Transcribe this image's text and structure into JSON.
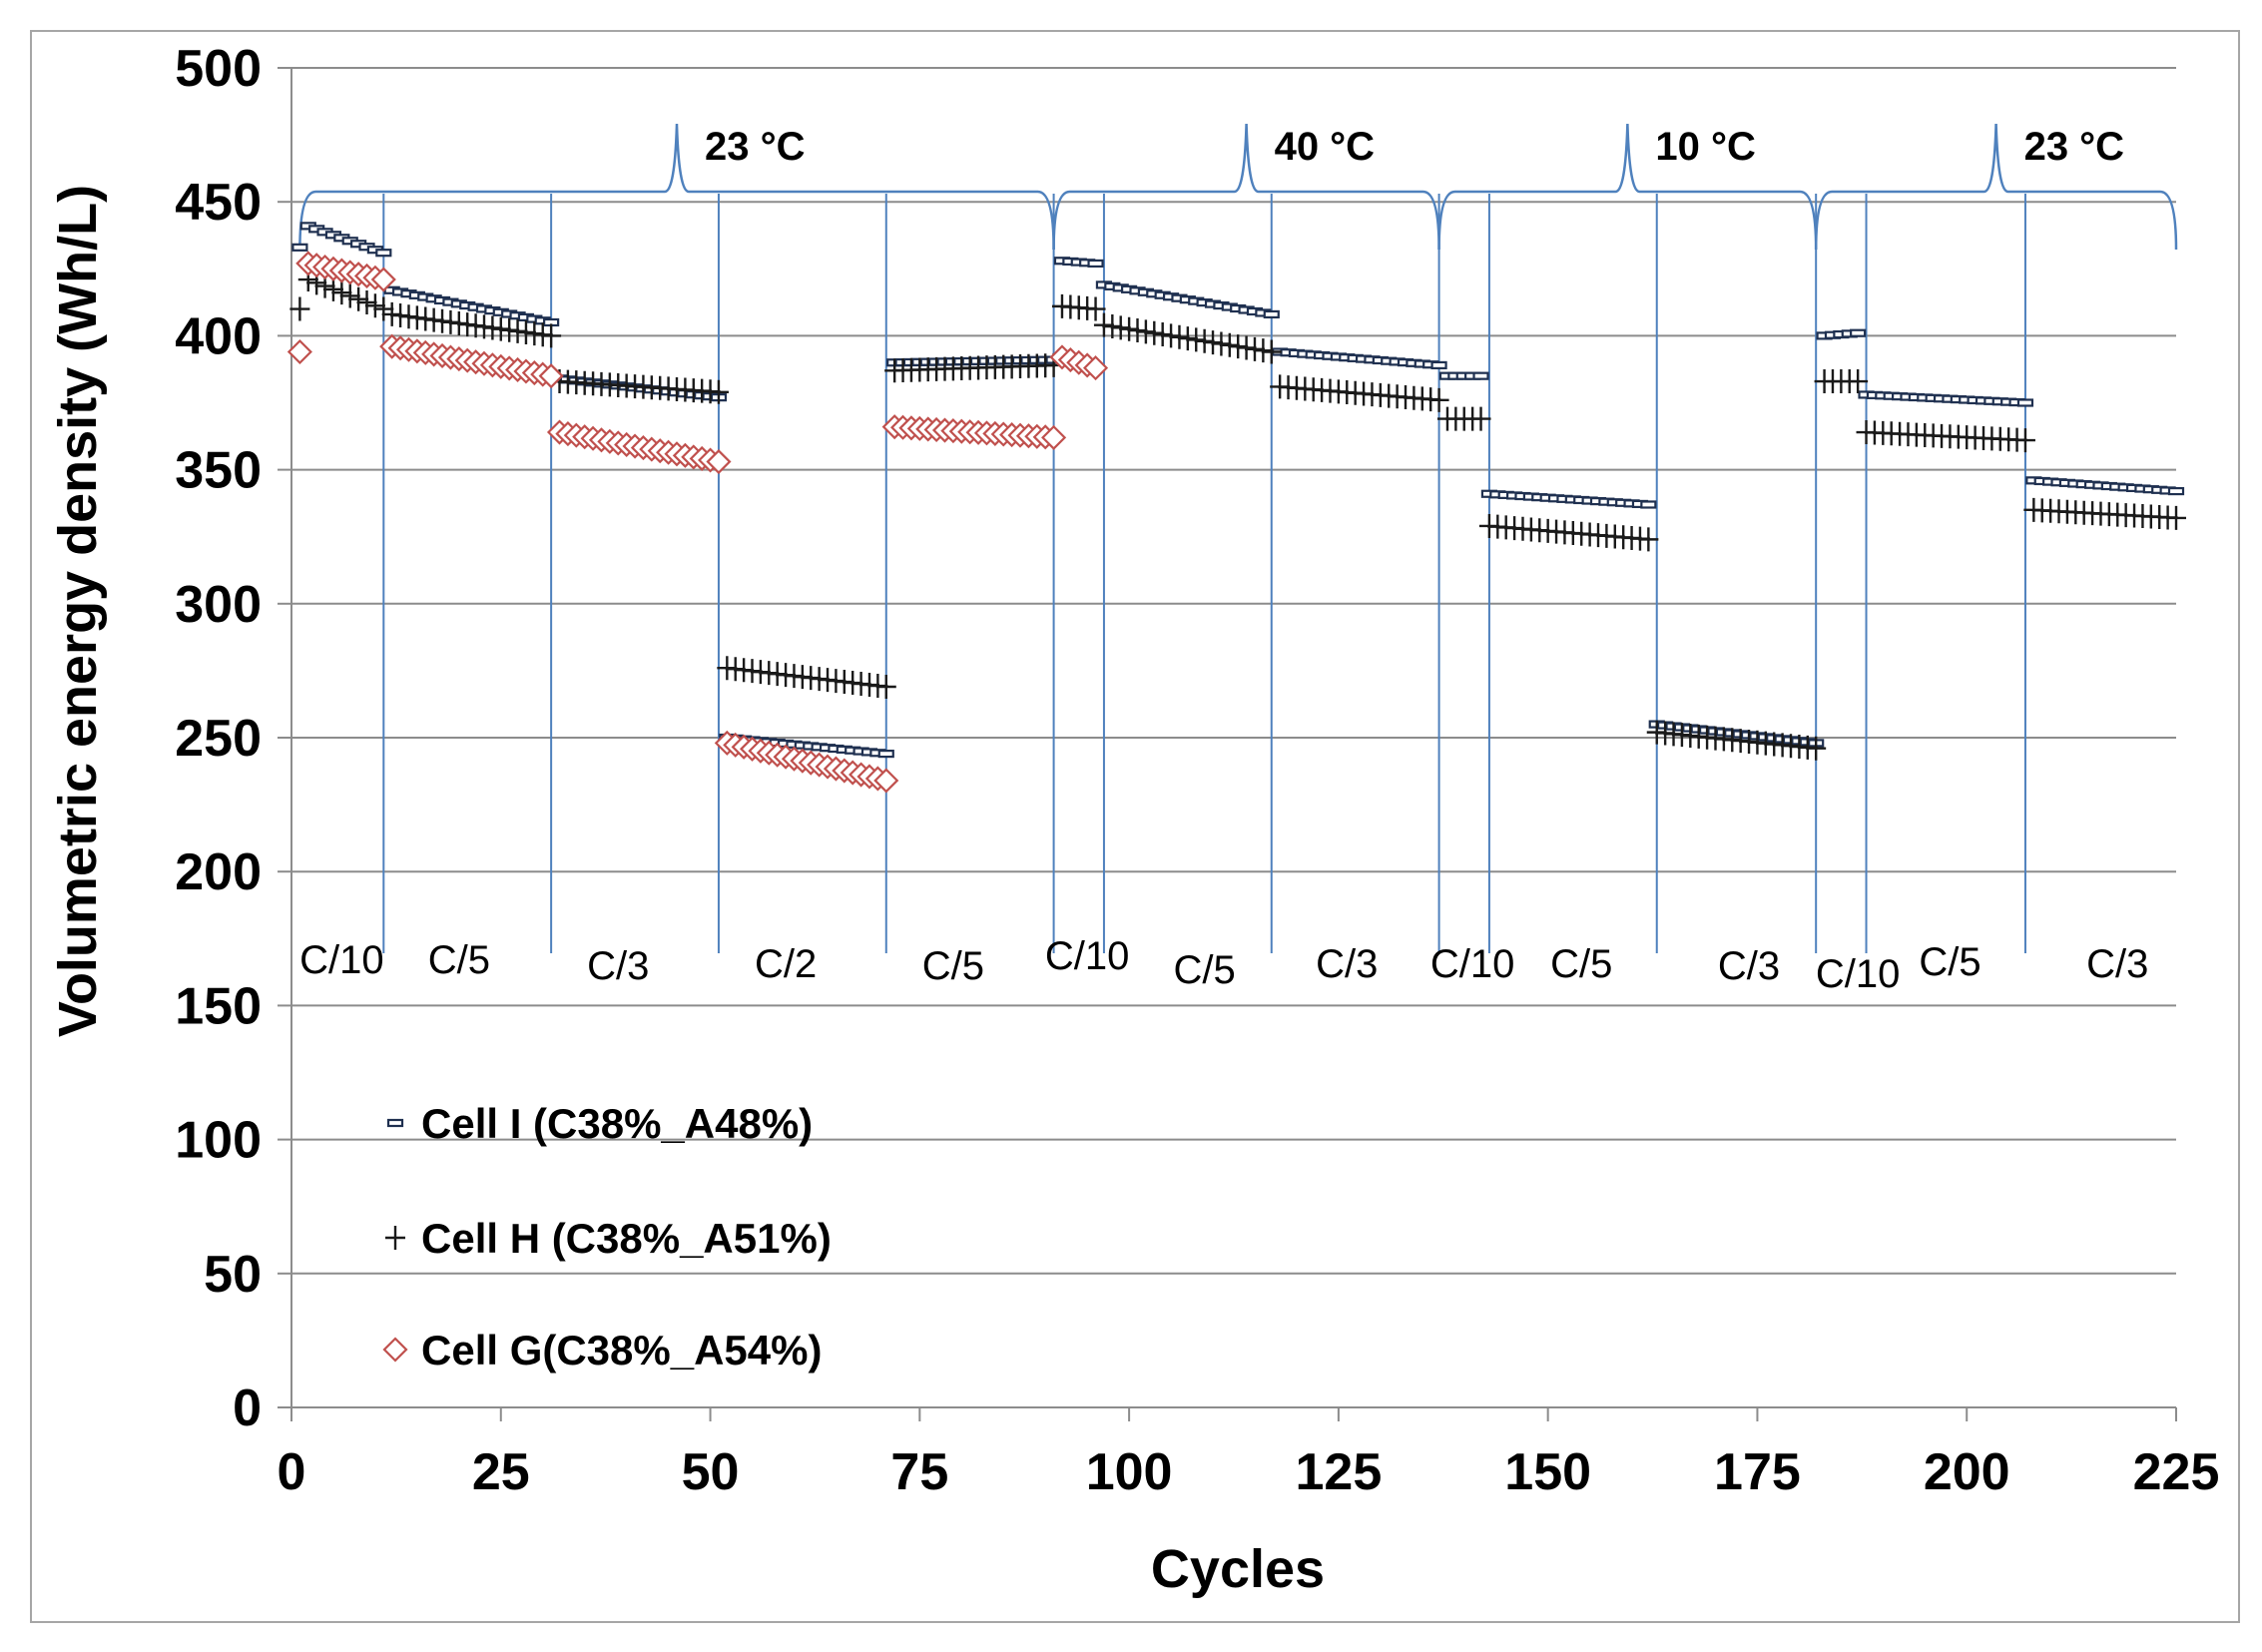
{
  "chart_data": {
    "type": "scatter",
    "xlabel": "Cycles",
    "ylabel": "Volumetric energy density (Wh/L)",
    "xlim": [
      0,
      225
    ],
    "ylim": [
      0,
      500
    ],
    "xticks": [
      0,
      25,
      50,
      75,
      100,
      125,
      150,
      175,
      200,
      225
    ],
    "yticks": [
      0,
      50,
      100,
      150,
      200,
      250,
      300,
      350,
      400,
      450,
      500
    ],
    "grid": "horizontal",
    "legend_position": "left-lower",
    "series": [
      {
        "name": "Cell I (C38%_A48%)",
        "marker": "dash-rect",
        "color": "#1f3050",
        "segments": [
          {
            "x0": 1,
            "x1": 1,
            "y0": 433,
            "y1": 433
          },
          {
            "x0": 2,
            "x1": 11,
            "y0": 441,
            "y1": 431
          },
          {
            "x0": 12,
            "x1": 31,
            "y0": 417,
            "y1": 405
          },
          {
            "x0": 32,
            "x1": 51,
            "y0": 384,
            "y1": 377
          },
          {
            "x0": 52,
            "x1": 71,
            "y0": 250,
            "y1": 244
          },
          {
            "x0": 72,
            "x1": 91,
            "y0": 390,
            "y1": 391
          },
          {
            "x0": 92,
            "x1": 96,
            "y0": 428,
            "y1": 427
          },
          {
            "x0": 97,
            "x1": 117,
            "y0": 419,
            "y1": 408
          },
          {
            "x0": 118,
            "x1": 137,
            "y0": 394,
            "y1": 389
          },
          {
            "x0": 138,
            "x1": 142,
            "y0": 385,
            "y1": 385
          },
          {
            "x0": 143,
            "x1": 162,
            "y0": 341,
            "y1": 337
          },
          {
            "x0": 163,
            "x1": 182,
            "y0": 255,
            "y1": 248
          },
          {
            "x0": 183,
            "x1": 187,
            "y0": 400,
            "y1": 401
          },
          {
            "x0": 188,
            "x1": 207,
            "y0": 378,
            "y1": 375
          },
          {
            "x0": 208,
            "x1": 225,
            "y0": 346,
            "y1": 342
          }
        ]
      },
      {
        "name": "Cell H (C38%_A51%)",
        "marker": "plus",
        "color": "#1a1a1a",
        "segments": [
          {
            "x0": 1,
            "x1": 1,
            "y0": 410,
            "y1": 410
          },
          {
            "x0": 2,
            "x1": 11,
            "y0": 421,
            "y1": 410
          },
          {
            "x0": 12,
            "x1": 31,
            "y0": 408,
            "y1": 400
          },
          {
            "x0": 32,
            "x1": 51,
            "y0": 383,
            "y1": 379
          },
          {
            "x0": 52,
            "x1": 71,
            "y0": 276,
            "y1": 269
          },
          {
            "x0": 72,
            "x1": 91,
            "y0": 387,
            "y1": 389
          },
          {
            "x0": 92,
            "x1": 96,
            "y0": 411,
            "y1": 410
          },
          {
            "x0": 97,
            "x1": 117,
            "y0": 404,
            "y1": 394
          },
          {
            "x0": 118,
            "x1": 137,
            "y0": 381,
            "y1": 376
          },
          {
            "x0": 138,
            "x1": 142,
            "y0": 369,
            "y1": 369
          },
          {
            "x0": 143,
            "x1": 162,
            "y0": 329,
            "y1": 324
          },
          {
            "x0": 163,
            "x1": 182,
            "y0": 252,
            "y1": 246
          },
          {
            "x0": 183,
            "x1": 187,
            "y0": 383,
            "y1": 383
          },
          {
            "x0": 188,
            "x1": 207,
            "y0": 364,
            "y1": 361
          },
          {
            "x0": 208,
            "x1": 225,
            "y0": 335,
            "y1": 332
          }
        ]
      },
      {
        "name": "Cell G(C38%_A54%)",
        "marker": "diamond",
        "color": "#c0504d",
        "segments": [
          {
            "x0": 1,
            "x1": 1,
            "y0": 394,
            "y1": 394
          },
          {
            "x0": 2,
            "x1": 11,
            "y0": 427,
            "y1": 421
          },
          {
            "x0": 12,
            "x1": 31,
            "y0": 396,
            "y1": 385
          },
          {
            "x0": 32,
            "x1": 51,
            "y0": 364,
            "y1": 353
          },
          {
            "x0": 52,
            "x1": 71,
            "y0": 248,
            "y1": 234
          },
          {
            "x0": 72,
            "x1": 91,
            "y0": 366,
            "y1": 362
          },
          {
            "x0": 92,
            "x1": 96,
            "y0": 392,
            "y1": 388
          }
        ]
      }
    ],
    "dividers": [
      11,
      31,
      51,
      71,
      91,
      97,
      117,
      137,
      143,
      163,
      182,
      188,
      207
    ],
    "rate_labels": [
      {
        "text": "C/10",
        "x": 6
      },
      {
        "text": "C/5",
        "x": 20
      },
      {
        "text": "C/3",
        "x": 39
      },
      {
        "text": "C/2",
        "x": 59
      },
      {
        "text": "C/5",
        "x": 79
      },
      {
        "text": "C/10",
        "x": 95
      },
      {
        "text": "C/5",
        "x": 109
      },
      {
        "text": "C/3",
        "x": 126
      },
      {
        "text": "C/10",
        "x": 141
      },
      {
        "text": "C/5",
        "x": 154
      },
      {
        "text": "C/3",
        "x": 174
      },
      {
        "text": "C/10",
        "x": 187
      },
      {
        "text": "C/5",
        "x": 198
      },
      {
        "text": "C/3",
        "x": 218
      }
    ],
    "temperature_groups": [
      {
        "label": "23 °C",
        "x0": 1,
        "x1": 91
      },
      {
        "label": "40 °C",
        "x0": 91,
        "x1": 137
      },
      {
        "label": "10 °C",
        "x0": 137,
        "x1": 182
      },
      {
        "label": "23 °C",
        "x0": 182,
        "x1": 225
      }
    ]
  }
}
